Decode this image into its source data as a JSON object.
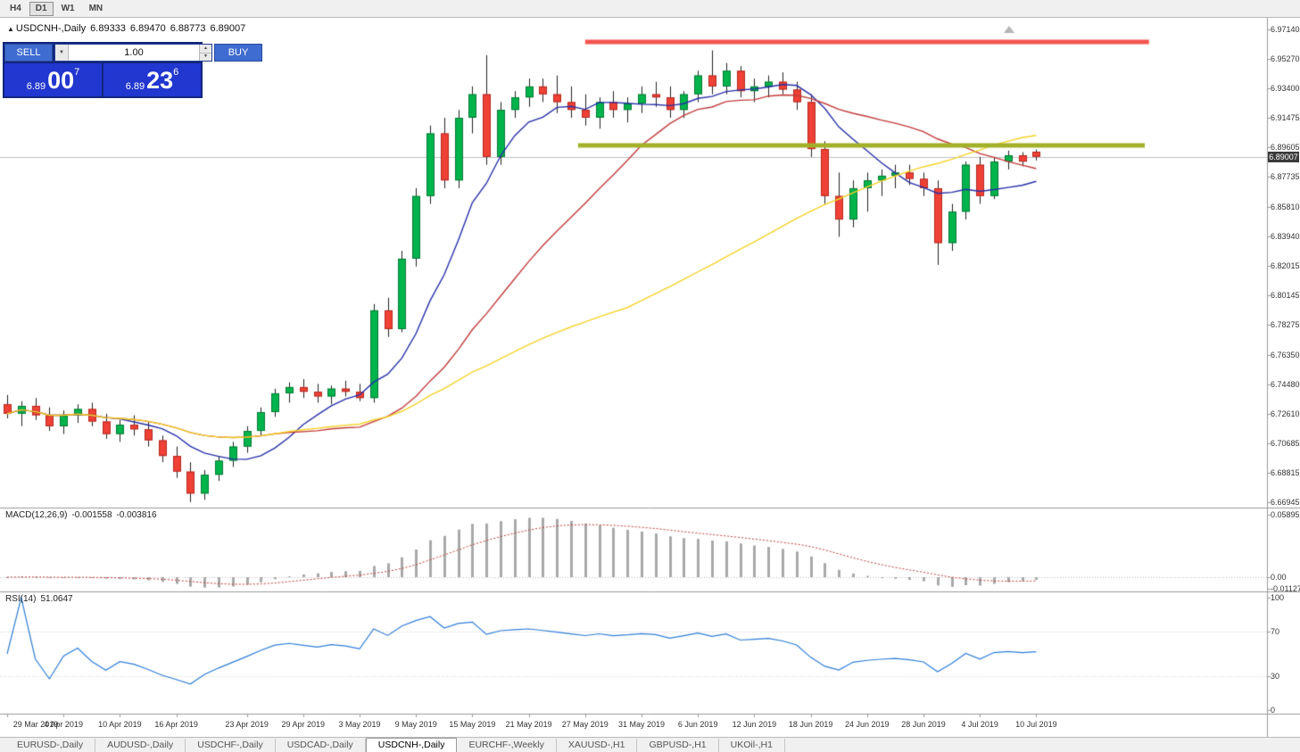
{
  "toolbar": {
    "timeframes": [
      {
        "label": "H4",
        "active": false
      },
      {
        "label": "D1",
        "active": true
      },
      {
        "label": "W1",
        "active": false
      },
      {
        "label": "MN",
        "active": false
      }
    ]
  },
  "chart_title": {
    "symbol": "USDCNH-,Daily",
    "open": "6.89333",
    "high": "6.89470",
    "low": "6.88773",
    "close": "6.89007"
  },
  "trade_panel": {
    "sell_label": "SELL",
    "buy_label": "BUY",
    "volume": "1.00",
    "sell_price": {
      "base": "6.89",
      "big": "00",
      "sup": "7"
    },
    "buy_price": {
      "base": "6.89",
      "big": "23",
      "sup": "6"
    }
  },
  "main": {
    "last_price": "6.89007"
  },
  "indicators": {
    "macd": {
      "title": "MACD(12,26,9)",
      "value": "-0.001558",
      "signal_value": "-0.003816",
      "axis_labels": [
        "0.05895",
        "0.00",
        "-0.01127"
      ],
      "fast": 12,
      "slow": 26,
      "signal": 9,
      "bar_color": "#a9a9a9",
      "signal_color": "#c43c3c"
    },
    "rsi": {
      "title": "RSI(14)",
      "value": "51.0647",
      "axis_labels": [
        "100",
        "70",
        "30",
        "0"
      ],
      "period": 14,
      "levels": [
        70,
        30
      ],
      "color": "#2f7ed8"
    }
  },
  "chart_data": {
    "type": "candlestick",
    "symbol": "USDCNH",
    "timeframe": "Daily",
    "last_price": 6.89007,
    "bull_color": "#00b44c",
    "bear_color": "#ef4136",
    "price_axis": {
      "labels": [
        "6.97140",
        "6.95270",
        "6.93400",
        "6.91475",
        "6.89605",
        "6.87735",
        "6.85810",
        "6.83940",
        "6.82015",
        "6.80145",
        "6.78275",
        "6.76350",
        "6.74480",
        "6.72610",
        "6.70685",
        "6.68815",
        "6.66945"
      ]
    },
    "x_axis": {
      "labels": [
        {
          "text": "29 Mar 2019",
          "index": 0
        },
        {
          "text": "4 Apr 2019",
          "index": 4
        },
        {
          "text": "10 Apr 2019",
          "index": 8
        },
        {
          "text": "16 Apr 2019",
          "index": 12
        },
        {
          "text": "23 Apr 2019",
          "index": 17
        },
        {
          "text": "29 Apr 2019",
          "index": 21
        },
        {
          "text": "3 May 2019",
          "index": 25
        },
        {
          "text": "9 May 2019",
          "index": 29
        },
        {
          "text": "15 May 2019",
          "index": 33
        },
        {
          "text": "21 May 2019",
          "index": 37
        },
        {
          "text": "27 May 2019",
          "index": 41
        },
        {
          "text": "31 May 2019",
          "index": 45
        },
        {
          "text": "6 Jun 2019",
          "index": 49
        },
        {
          "text": "12 Jun 2019",
          "index": 53
        },
        {
          "text": "18 Jun 2019",
          "index": 57
        },
        {
          "text": "24 Jun 2019",
          "index": 61
        },
        {
          "text": "28 Jun 2019",
          "index": 65
        },
        {
          "text": "4 Jul 2019",
          "index": 69
        },
        {
          "text": "10 Jul 2019",
          "index": 73
        }
      ]
    },
    "candles": [
      [
        6.732,
        6.738,
        6.723,
        6.726
      ],
      [
        6.726,
        6.734,
        6.718,
        6.731
      ],
      [
        6.731,
        6.736,
        6.722,
        6.725
      ],
      [
        6.725,
        6.73,
        6.715,
        6.718
      ],
      [
        6.718,
        6.728,
        6.713,
        6.725
      ],
      [
        6.725,
        6.732,
        6.72,
        6.729
      ],
      [
        6.729,
        6.733,
        6.718,
        6.721
      ],
      [
        6.721,
        6.726,
        6.71,
        6.713
      ],
      [
        6.713,
        6.722,
        6.708,
        6.719
      ],
      [
        6.719,
        6.725,
        6.712,
        6.716
      ],
      [
        6.716,
        6.721,
        6.705,
        6.709
      ],
      [
        6.709,
        6.712,
        6.695,
        6.699
      ],
      [
        6.699,
        6.705,
        6.685,
        6.689
      ],
      [
        6.689,
        6.695,
        6.6695,
        6.675
      ],
      [
        6.675,
        6.69,
        6.671,
        6.687
      ],
      [
        6.687,
        6.699,
        6.683,
        6.696
      ],
      [
        6.696,
        6.708,
        6.692,
        6.705
      ],
      [
        6.705,
        6.718,
        6.701,
        6.715
      ],
      [
        6.715,
        6.73,
        6.712,
        6.727
      ],
      [
        6.727,
        6.742,
        6.724,
        6.739
      ],
      [
        6.739,
        6.746,
        6.733,
        6.743
      ],
      [
        6.743,
        6.748,
        6.736,
        6.74
      ],
      [
        6.74,
        6.745,
        6.733,
        6.737
      ],
      [
        6.737,
        6.744,
        6.732,
        6.742
      ],
      [
        6.742,
        6.747,
        6.737,
        6.74
      ],
      [
        6.74,
        6.745,
        6.734,
        6.736
      ],
      [
        6.736,
        6.796,
        6.733,
        6.792
      ],
      [
        6.792,
        6.8,
        6.775,
        6.78
      ],
      [
        6.78,
        6.83,
        6.778,
        6.825
      ],
      [
        6.825,
        6.87,
        6.82,
        6.865
      ],
      [
        6.865,
        6.91,
        6.86,
        6.905
      ],
      [
        6.905,
        6.915,
        6.87,
        6.875
      ],
      [
        6.875,
        6.92,
        6.87,
        6.915
      ],
      [
        6.915,
        6.935,
        6.905,
        6.93
      ],
      [
        6.93,
        6.955,
        6.885,
        6.89
      ],
      [
        6.89,
        6.925,
        6.885,
        6.92
      ],
      [
        6.92,
        6.932,
        6.915,
        6.928
      ],
      [
        6.928,
        6.94,
        6.922,
        6.935
      ],
      [
        6.935,
        6.94,
        6.925,
        6.93
      ],
      [
        6.93,
        6.942,
        6.918,
        6.925
      ],
      [
        6.925,
        6.935,
        6.915,
        6.92
      ],
      [
        6.92,
        6.93,
        6.91,
        6.915
      ],
      [
        6.915,
        6.928,
        6.908,
        6.925
      ],
      [
        6.925,
        6.932,
        6.915,
        6.92
      ],
      [
        6.92,
        6.928,
        6.912,
        6.924
      ],
      [
        6.924,
        6.935,
        6.918,
        6.93
      ],
      [
        6.93,
        6.938,
        6.922,
        6.928
      ],
      [
        6.928,
        6.935,
        6.915,
        6.92
      ],
      [
        6.92,
        6.932,
        6.915,
        6.93
      ],
      [
        6.93,
        6.945,
        6.925,
        6.942
      ],
      [
        6.942,
        6.958,
        6.93,
        6.935
      ],
      [
        6.935,
        6.95,
        6.93,
        6.945
      ],
      [
        6.945,
        6.948,
        6.928,
        6.932
      ],
      [
        6.932,
        6.94,
        6.925,
        6.935
      ],
      [
        6.935,
        6.942,
        6.928,
        6.938
      ],
      [
        6.938,
        6.944,
        6.93,
        6.933
      ],
      [
        6.933,
        6.938,
        6.92,
        6.925
      ],
      [
        6.925,
        6.93,
        6.89,
        6.895
      ],
      [
        6.895,
        6.9,
        6.86,
        6.865
      ],
      [
        6.865,
        6.88,
        6.839,
        6.85
      ],
      [
        6.85,
        6.875,
        6.845,
        6.87
      ],
      [
        6.87,
        6.88,
        6.855,
        6.875
      ],
      [
        6.875,
        6.882,
        6.865,
        6.878
      ],
      [
        6.878,
        6.885,
        6.87,
        6.88
      ],
      [
        6.88,
        6.885,
        6.872,
        6.876
      ],
      [
        6.876,
        6.88,
        6.865,
        6.87
      ],
      [
        6.87,
        6.875,
        6.821,
        6.835
      ],
      [
        6.835,
        6.86,
        6.83,
        6.855
      ],
      [
        6.855,
        6.887,
        6.85,
        6.885
      ],
      [
        6.885,
        6.89,
        6.86,
        6.865
      ],
      [
        6.865,
        6.89,
        6.863,
        6.887
      ],
      [
        6.887,
        6.894,
        6.882,
        6.891
      ],
      [
        6.891,
        6.893,
        6.884,
        6.887
      ],
      [
        6.89333,
        6.8947,
        6.88773,
        6.89007
      ]
    ],
    "moving_averages": [
      {
        "period": 8,
        "color": "#2730a8"
      },
      {
        "period": 20,
        "color": "#c23b3b"
      },
      {
        "period": 45,
        "color": "#f5d327"
      }
    ],
    "trend_lines": [
      {
        "price": 6.9635,
        "from_index": 41,
        "to_index": 81,
        "color": "#f4554e",
        "width": 5
      },
      {
        "price": 6.8975,
        "from_index": 40.5,
        "to_index": 80.7,
        "color": "#a2b129",
        "width": 5
      }
    ]
  },
  "tabs": [
    {
      "label": "EURUSD-,Daily",
      "active": false
    },
    {
      "label": "AUDUSD-,Daily",
      "active": false
    },
    {
      "label": "USDCHF-,Daily",
      "active": false
    },
    {
      "label": "USDCAD-,Daily",
      "active": false
    },
    {
      "label": "USDCNH-,Daily",
      "active": true
    },
    {
      "label": "EURCHF-,Weekly",
      "active": false
    },
    {
      "label": "XAUUSD-,H1",
      "active": false
    },
    {
      "label": "GBPUSD-,H1",
      "active": false
    },
    {
      "label": "UKOil-,H1",
      "active": false
    }
  ]
}
